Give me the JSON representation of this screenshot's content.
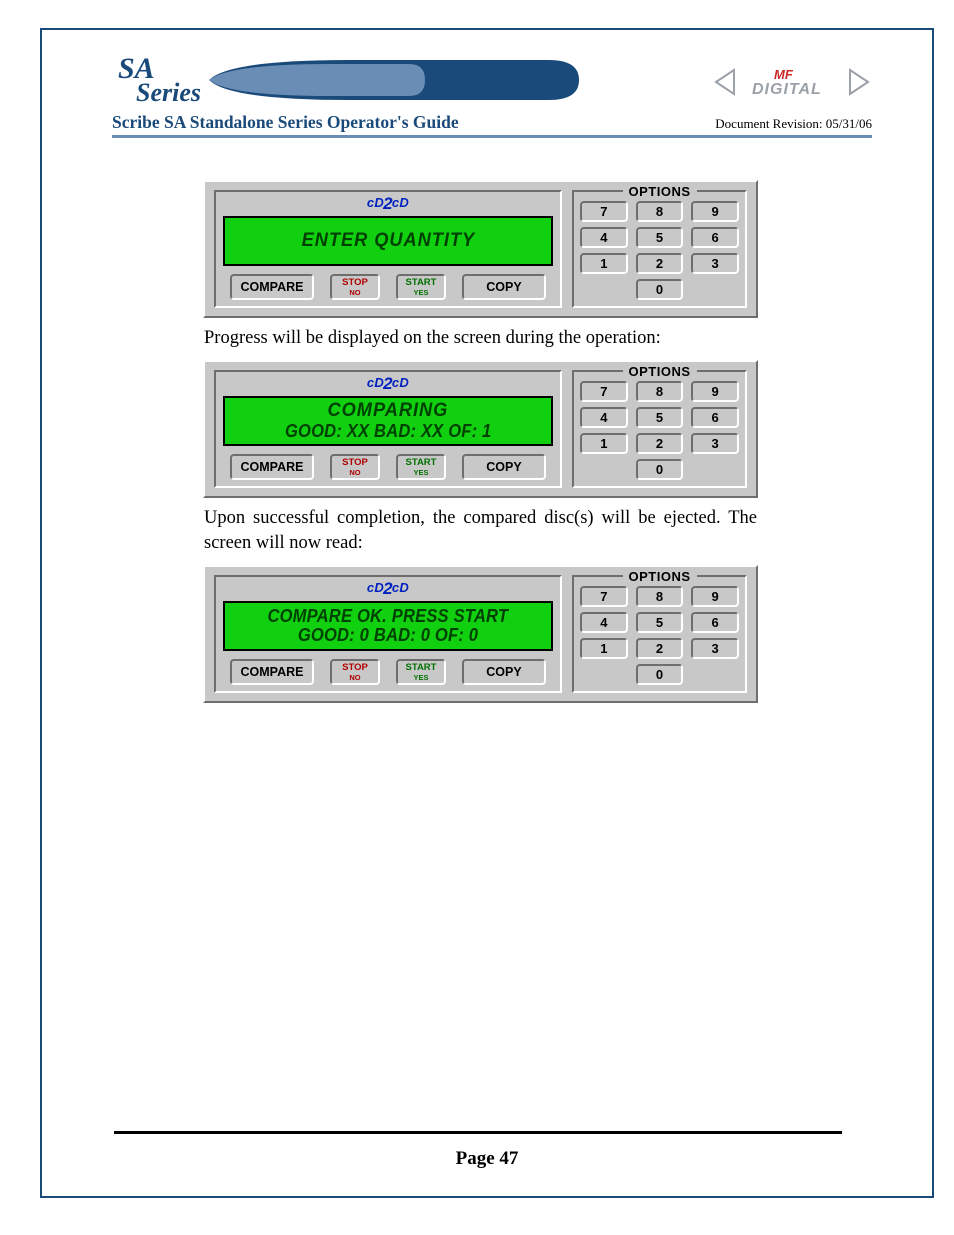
{
  "colors": {
    "border": "#1a4a7a",
    "header_underline": "#6a8db5",
    "lcd_bg": "#10d010",
    "lcd_text": "#004000",
    "panel_bg": "#c8c8c8",
    "logo_blue": "#0020c0",
    "stop_red": "#b00000",
    "start_green": "#007000",
    "mf_red": "#cc2a2a",
    "mf_gray": "#9aa1a8"
  },
  "header": {
    "logo_line1": "SA",
    "logo_line2": "Series",
    "mf_logo_top": "MF",
    "mf_logo_bottom": "DIGITAL",
    "title": "Scribe SA Standalone Series Operator's Guide",
    "revision": "Document Revision: 05/31/06"
  },
  "body_text": {
    "p1": "Progress will be displayed on the screen during the operation:",
    "p2": "Upon successful completion, the compared disc(s) will be ejected. The screen will now read:"
  },
  "panel_common": {
    "brand": "cD2cD",
    "compare": "COMPARE",
    "stop_top": "STOP",
    "stop_bot": "NO",
    "start_top": "START",
    "start_bot": "YES",
    "copy": "COPY",
    "options": "OPTIONS",
    "keys": [
      "7",
      "8",
      "9",
      "4",
      "5",
      "6",
      "1",
      "2",
      "3",
      "0"
    ]
  },
  "panels": [
    {
      "lines": [
        "ENTER QUANTITY"
      ],
      "tight": [
        false
      ]
    },
    {
      "lines": [
        "COMPARING",
        "GOOD: XX   BAD: XX   OF: 1"
      ],
      "tight": [
        false,
        true
      ]
    },
    {
      "lines": [
        "COMPARE OK. PRESS START",
        "GOOD: 0   BAD: 0   OF: 0"
      ],
      "tight": [
        true,
        true
      ]
    }
  ],
  "footer": {
    "page": "Page 47"
  }
}
